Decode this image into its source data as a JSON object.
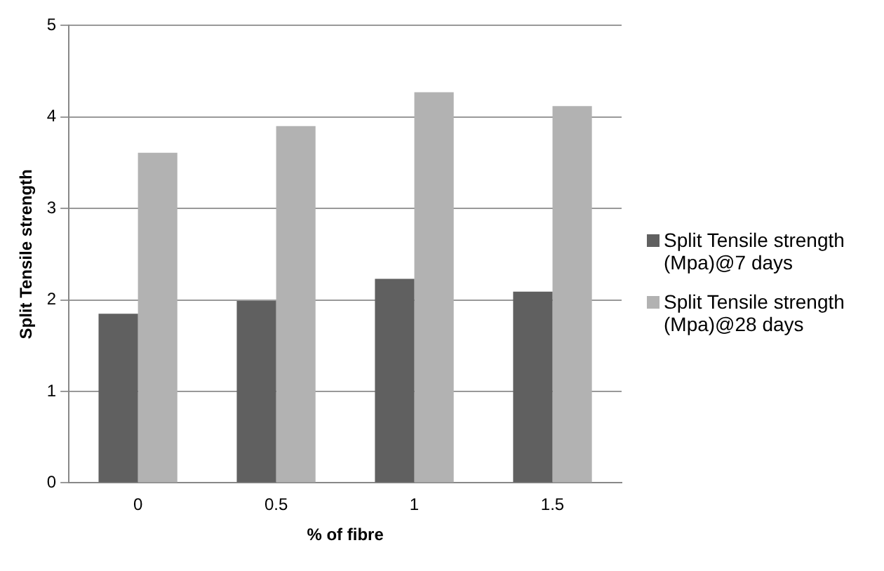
{
  "chart_data": {
    "type": "bar",
    "xlabel": "% of fibre",
    "ylabel": "Split Tensile strength",
    "categories": [
      "0",
      "0.5",
      "1",
      "1.5"
    ],
    "series": [
      {
        "name": "Split Tensile strength (Mpa)@7 days",
        "color": "#606060",
        "values": [
          1.85,
          1.99,
          2.23,
          2.09
        ]
      },
      {
        "name": "Split Tensile strength (Mpa)@28 days",
        "color": "#b2b2b2",
        "values": [
          3.61,
          3.9,
          4.27,
          4.12
        ]
      }
    ],
    "ylim": [
      0,
      5
    ],
    "yticks": [
      0,
      1,
      2,
      3,
      4,
      5
    ],
    "grid": "y",
    "legend": "right"
  }
}
